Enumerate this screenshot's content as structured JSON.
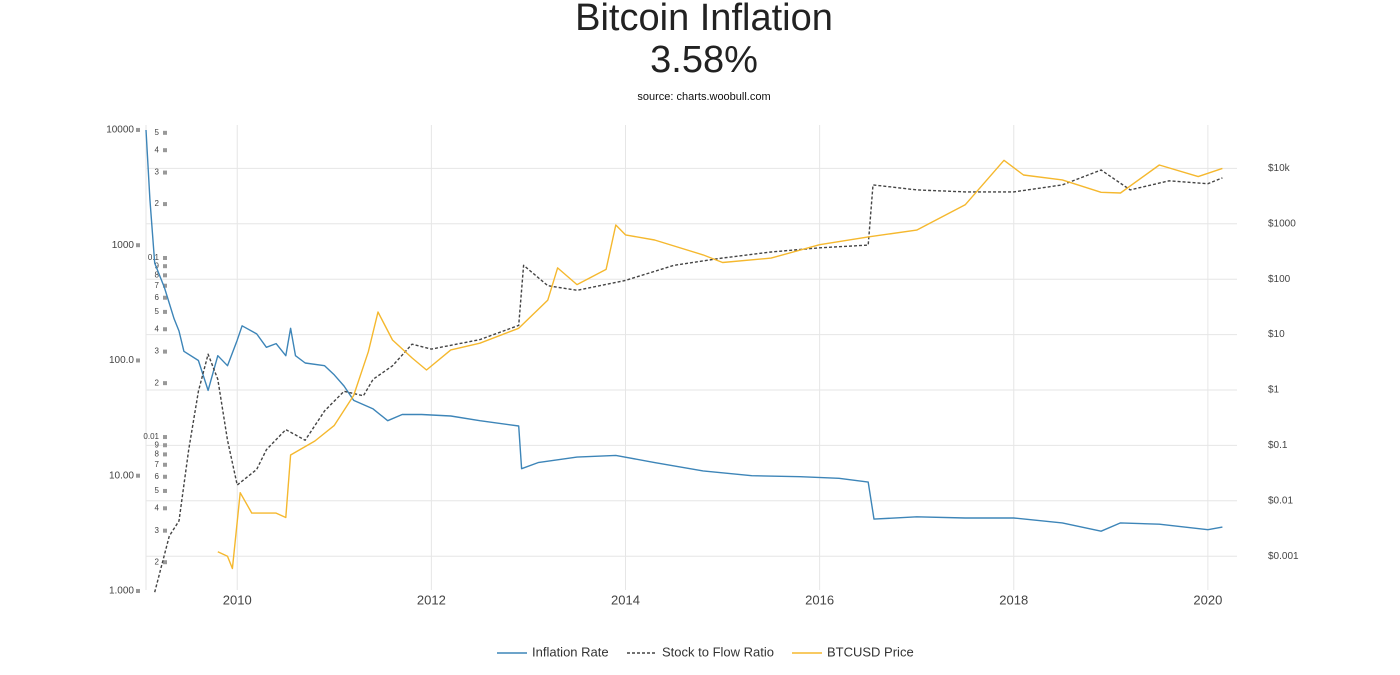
{
  "chart_data": {
    "type": "line",
    "title": "Bitcoin Inflation",
    "subtitle": "3.58%",
    "source": "source: charts.woobull.com",
    "xlim": [
      2009.06,
      2020.3
    ],
    "xticks": [
      2010,
      2012,
      2014,
      2016,
      2018,
      2020
    ],
    "yscale": "log",
    "ylim": [
      0.835,
      11040
    ],
    "yticks": [
      10000,
      1000,
      {
        "value": 100,
        "label": "100.0"
      },
      {
        "value": 10,
        "label": "10.00"
      },
      {
        "value": 1,
        "label": "1.000"
      }
    ],
    "y3scale": "log",
    "y3lim": [
      0.00123,
      0.553
    ],
    "y3ticks": [
      {
        "value": 0.5,
        "label": "5"
      },
      {
        "value": 0.4,
        "label": "4"
      },
      {
        "value": 0.3,
        "label": "3"
      },
      {
        "value": 0.2,
        "label": "2"
      },
      0.1,
      {
        "value": 0.09,
        "label": "9"
      },
      {
        "value": 0.08,
        "label": "8"
      },
      {
        "value": 0.07,
        "label": "7"
      },
      {
        "value": 0.06,
        "label": "6"
      },
      {
        "value": 0.05,
        "label": "5"
      },
      {
        "value": 0.04,
        "label": "4"
      },
      {
        "value": 0.03,
        "label": "3"
      },
      {
        "value": 0.02,
        "label": "2"
      },
      0.01,
      {
        "value": 0.009,
        "label": "9"
      },
      {
        "value": 0.008,
        "label": "8"
      },
      {
        "value": 0.007,
        "label": "7"
      },
      {
        "value": 0.006,
        "label": "6"
      },
      {
        "value": 0.005,
        "label": "5"
      },
      {
        "value": 0.004,
        "label": "4"
      },
      {
        "value": 0.003,
        "label": "3"
      },
      {
        "value": 0.002,
        "label": "2"
      }
    ],
    "y2scale": "log",
    "y2lim": [
      0.000162,
      60700
    ],
    "y2ticks": [
      {
        "value": 10000,
        "label": "$10k"
      },
      {
        "value": 1000,
        "label": "$1000"
      },
      {
        "value": 100,
        "label": "$100"
      },
      {
        "value": 10,
        "label": "$10"
      },
      {
        "value": 1,
        "label": "$1"
      },
      {
        "value": 0.1,
        "label": "$0.1"
      },
      {
        "value": 0.01,
        "label": "$0.01"
      },
      {
        "value": 0.001,
        "label": "$0.001"
      }
    ],
    "grid": true,
    "legend": "bottom",
    "series": [
      {
        "name": "Inflation Rate",
        "color": "#3d85b8",
        "axis": "y",
        "dash": false,
        "x": [
          2009.06,
          2009.1,
          2009.15,
          2009.25,
          2009.35,
          2009.4,
          2009.45,
          2009.6,
          2009.7,
          2009.8,
          2009.9,
          2010.0,
          2010.05,
          2010.2,
          2010.3,
          2010.4,
          2010.5,
          2010.55,
          2010.6,
          2010.7,
          2010.9,
          2011.0,
          2011.1,
          2011.2,
          2011.4,
          2011.55,
          2011.7,
          2011.9,
          2012.2,
          2012.5,
          2012.9,
          2012.93,
          2013.1,
          2013.5,
          2013.9,
          2014.3,
          2014.8,
          2015.3,
          2015.8,
          2016.2,
          2016.5,
          2016.56,
          2017.0,
          2017.5,
          2018.0,
          2018.5,
          2018.9,
          2019.1,
          2019.5,
          2020.0,
          2020.15
        ],
        "values": [
          10000,
          2500,
          700,
          430,
          230,
          180,
          120,
          100,
          55,
          110,
          90,
          150,
          200,
          170,
          130,
          140,
          110,
          190,
          110,
          95,
          90,
          75,
          60,
          45,
          38,
          30,
          34,
          34,
          33,
          30,
          27,
          11.5,
          13,
          14.5,
          15,
          13,
          11,
          10,
          9.8,
          9.5,
          8.8,
          4.2,
          4.4,
          4.3,
          4.3,
          3.9,
          3.3,
          3.9,
          3.8,
          3.4,
          3.58
        ]
      },
      {
        "name": "Stock to Flow Ratio",
        "color": "#444444",
        "axis": "y3",
        "dash": true,
        "x": [
          2009.15,
          2009.3,
          2009.4,
          2009.5,
          2009.6,
          2009.7,
          2009.8,
          2009.9,
          2010.0,
          2010.2,
          2010.3,
          2010.5,
          2010.7,
          2010.9,
          2011.1,
          2011.3,
          2011.4,
          2011.6,
          2011.8,
          2012.0,
          2012.5,
          2012.9,
          2012.95,
          2013.2,
          2013.5,
          2014.0,
          2014.5,
          2015.0,
          2015.5,
          2016.0,
          2016.5,
          2016.55,
          2017.0,
          2017.5,
          2018.0,
          2018.5,
          2018.9,
          2019.2,
          2019.6,
          2020.0,
          2020.15
        ],
        "values": [
          0.00136,
          0.0028,
          0.0034,
          0.0085,
          0.018,
          0.029,
          0.021,
          0.0096,
          0.0054,
          0.0066,
          0.0085,
          0.011,
          0.0096,
          0.014,
          0.018,
          0.017,
          0.021,
          0.025,
          0.033,
          0.031,
          0.035,
          0.042,
          0.091,
          0.07,
          0.066,
          0.075,
          0.091,
          0.1,
          0.108,
          0.114,
          0.118,
          0.256,
          0.24,
          0.234,
          0.234,
          0.256,
          0.31,
          0.24,
          0.27,
          0.26,
          0.28
        ]
      },
      {
        "name": "BTCUSD Price",
        "color": "#f5b82e",
        "axis": "y2",
        "dash": false,
        "x": [
          2009.8,
          2009.9,
          2009.95,
          2010.03,
          2010.15,
          2010.4,
          2010.5,
          2010.55,
          2010.8,
          2011.0,
          2011.2,
          2011.35,
          2011.45,
          2011.6,
          2011.8,
          2011.95,
          2012.2,
          2012.5,
          2012.9,
          2013.2,
          2013.3,
          2013.5,
          2013.8,
          2013.9,
          2014.0,
          2014.3,
          2014.8,
          2015.0,
          2015.5,
          2016.0,
          2016.5,
          2017.0,
          2017.5,
          2017.9,
          2018.1,
          2018.5,
          2018.9,
          2019.1,
          2019.5,
          2019.9,
          2020.15
        ],
        "values": [
          0.0012,
          0.001,
          0.0006,
          0.014,
          0.006,
          0.006,
          0.005,
          0.067,
          0.12,
          0.23,
          0.8,
          4.9,
          25.6,
          8,
          3.8,
          2.3,
          5.3,
          7,
          13,
          42,
          160,
          80,
          150,
          950,
          630,
          510,
          275,
          200,
          240,
          420,
          580,
          770,
          2200,
          14000,
          7600,
          6200,
          3700,
          3600,
          11500,
          7100,
          10000
        ]
      }
    ]
  }
}
